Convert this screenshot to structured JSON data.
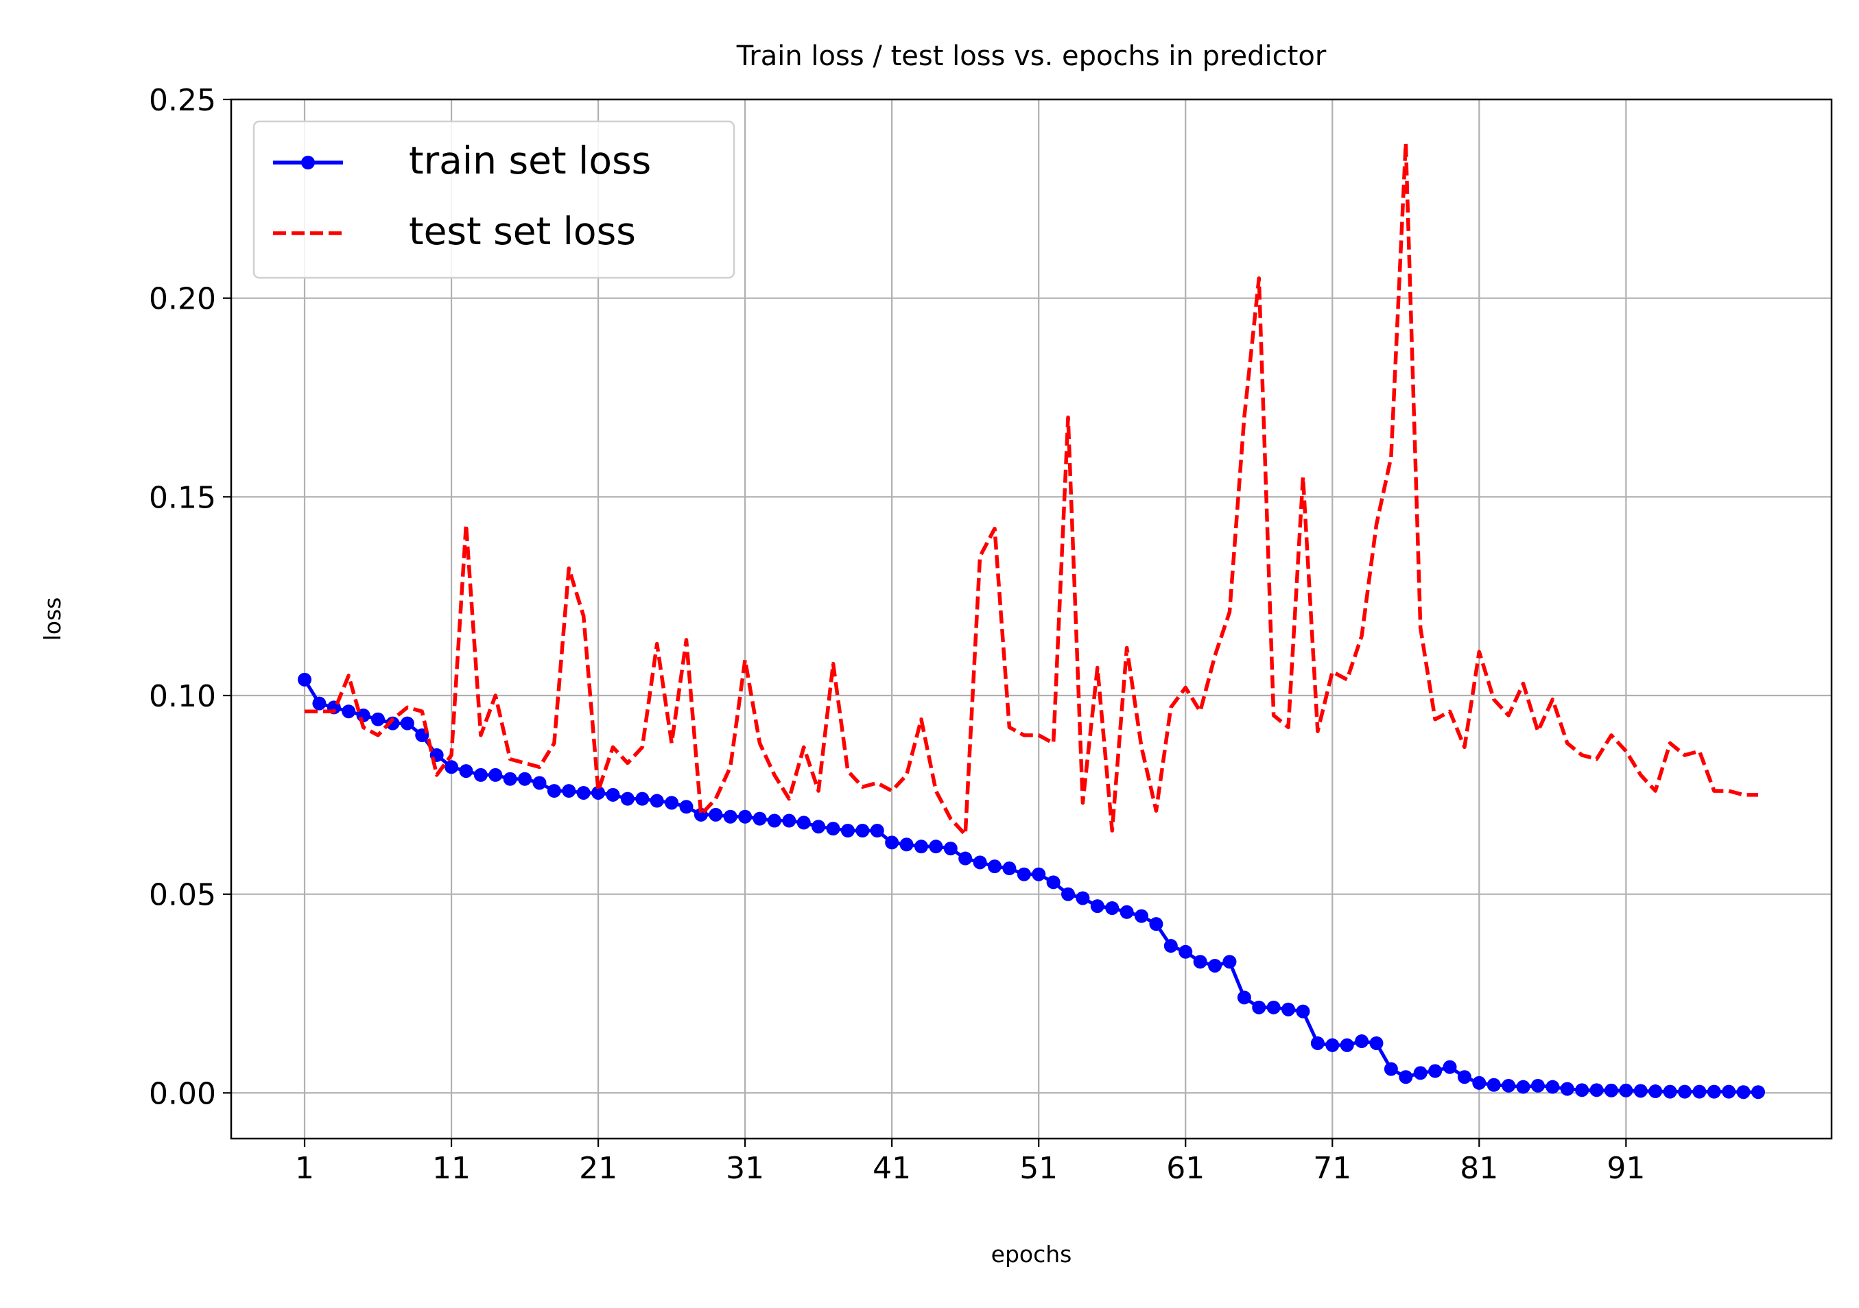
{
  "chart_data": {
    "type": "line",
    "title": "Train loss / test loss vs. epochs in predictor",
    "xlabel": "epochs",
    "ylabel": "loss",
    "xlim": [
      -4,
      105
    ],
    "ylim": [
      -0.0115,
      0.25
    ],
    "x_ticks": [
      1,
      11,
      21,
      31,
      41,
      51,
      61,
      71,
      81,
      91
    ],
    "x_tick_labels": [
      "1",
      "11",
      "21",
      "31",
      "41",
      "51",
      "61",
      "71",
      "81",
      "91"
    ],
    "y_ticks": [
      0.0,
      0.05,
      0.1,
      0.15,
      0.2,
      0.25
    ],
    "y_tick_labels": [
      "0.00",
      "0.05",
      "0.10",
      "0.15",
      "0.20",
      "0.25"
    ],
    "grid": true,
    "legend_position": "top-left",
    "series": [
      {
        "name": "train set loss",
        "color": "#0000ff",
        "style": "solid",
        "marker": "circle",
        "x": [
          1,
          2,
          3,
          4,
          5,
          6,
          7,
          8,
          9,
          10,
          11,
          12,
          13,
          14,
          15,
          16,
          17,
          18,
          19,
          20,
          21,
          22,
          23,
          24,
          25,
          26,
          27,
          28,
          29,
          30,
          31,
          32,
          33,
          34,
          35,
          36,
          37,
          38,
          39,
          40,
          41,
          42,
          43,
          44,
          45,
          46,
          47,
          48,
          49,
          50,
          51,
          52,
          53,
          54,
          55,
          56,
          57,
          58,
          59,
          60,
          61,
          62,
          63,
          64,
          65,
          66,
          67,
          68,
          69,
          70,
          71,
          72,
          73,
          74,
          75,
          76,
          77,
          78,
          79,
          80,
          81,
          82,
          83,
          84,
          85,
          86,
          87,
          88,
          89,
          90,
          91,
          92,
          93,
          94,
          95,
          96,
          97,
          98,
          99,
          100
        ],
        "y": [
          0.104,
          0.098,
          0.097,
          0.096,
          0.095,
          0.094,
          0.093,
          0.093,
          0.09,
          0.085,
          0.082,
          0.081,
          0.08,
          0.08,
          0.079,
          0.079,
          0.078,
          0.076,
          0.076,
          0.0755,
          0.0755,
          0.075,
          0.074,
          0.074,
          0.0735,
          0.073,
          0.072,
          0.07,
          0.07,
          0.0695,
          0.0695,
          0.069,
          0.0685,
          0.0685,
          0.068,
          0.067,
          0.0665,
          0.066,
          0.066,
          0.066,
          0.063,
          0.0625,
          0.062,
          0.062,
          0.0615,
          0.059,
          0.058,
          0.057,
          0.0565,
          0.055,
          0.055,
          0.053,
          0.05,
          0.049,
          0.047,
          0.0465,
          0.0455,
          0.0445,
          0.0425,
          0.037,
          0.0355,
          0.033,
          0.032,
          0.033,
          0.024,
          0.0215,
          0.0215,
          0.021,
          0.0205,
          0.0125,
          0.012,
          0.012,
          0.013,
          0.0125,
          0.006,
          0.004,
          0.005,
          0.0055,
          0.0065,
          0.004,
          0.0025,
          0.002,
          0.0018,
          0.0015,
          0.0018,
          0.0015,
          0.001,
          0.0007,
          0.0007,
          0.0006,
          0.0006,
          0.0005,
          0.0004,
          0.0003,
          0.0003,
          0.0003,
          0.0003,
          0.0003,
          0.0002,
          0.0002
        ]
      },
      {
        "name": "test set loss",
        "color": "#ff0000",
        "style": "dashed",
        "marker": "none",
        "x": [
          1,
          2,
          3,
          4,
          5,
          6,
          7,
          8,
          9,
          10,
          11,
          12,
          13,
          14,
          15,
          16,
          17,
          18,
          19,
          20,
          21,
          22,
          23,
          24,
          25,
          26,
          27,
          28,
          29,
          30,
          31,
          32,
          33,
          34,
          35,
          36,
          37,
          38,
          39,
          40,
          41,
          42,
          43,
          44,
          45,
          46,
          47,
          48,
          49,
          50,
          51,
          52,
          53,
          54,
          55,
          56,
          57,
          58,
          59,
          60,
          61,
          62,
          63,
          64,
          65,
          66,
          67,
          68,
          69,
          70,
          71,
          72,
          73,
          74,
          75,
          76,
          77,
          78,
          79,
          80,
          81,
          82,
          83,
          84,
          85,
          86,
          87,
          88,
          89,
          90,
          91,
          92,
          93,
          94,
          95,
          96,
          97,
          98,
          99,
          100
        ],
        "y": [
          0.096,
          0.096,
          0.096,
          0.105,
          0.092,
          0.09,
          0.094,
          0.097,
          0.096,
          0.08,
          0.085,
          0.143,
          0.09,
          0.1,
          0.084,
          0.083,
          0.082,
          0.088,
          0.132,
          0.12,
          0.076,
          0.087,
          0.083,
          0.087,
          0.113,
          0.088,
          0.114,
          0.07,
          0.074,
          0.082,
          0.109,
          0.088,
          0.08,
          0.074,
          0.087,
          0.076,
          0.108,
          0.081,
          0.077,
          0.078,
          0.076,
          0.08,
          0.094,
          0.076,
          0.069,
          0.065,
          0.135,
          0.142,
          0.092,
          0.09,
          0.09,
          0.088,
          0.17,
          0.073,
          0.107,
          0.066,
          0.112,
          0.087,
          0.071,
          0.097,
          0.102,
          0.096,
          0.11,
          0.121,
          0.17,
          0.205,
          0.095,
          0.092,
          0.155,
          0.091,
          0.106,
          0.104,
          0.115,
          0.143,
          0.16,
          0.239,
          0.117,
          0.094,
          0.096,
          0.087,
          0.111,
          0.099,
          0.095,
          0.103,
          0.091,
          0.099,
          0.088,
          0.085,
          0.084,
          0.09,
          0.086,
          0.08,
          0.076,
          0.088,
          0.085,
          0.086,
          0.076,
          0.076,
          0.075,
          0.075
        ]
      }
    ]
  }
}
